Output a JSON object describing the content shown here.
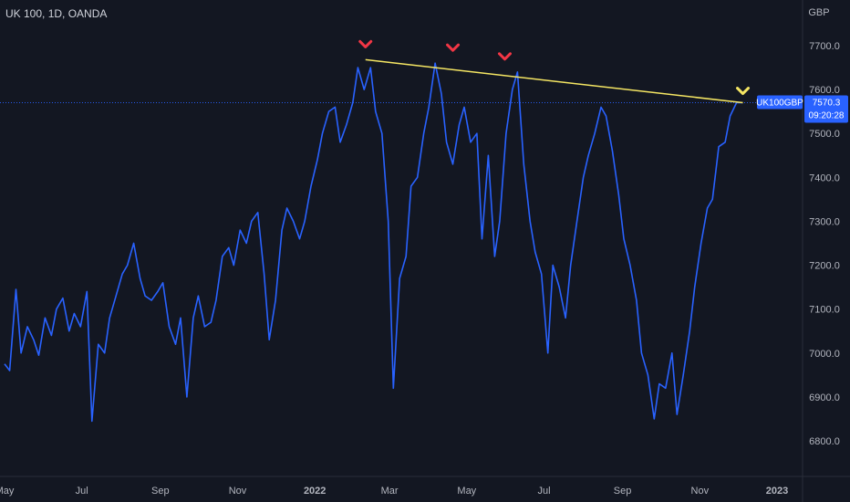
{
  "header": {
    "symbol_title": "UK 100, 1D, OANDA"
  },
  "price_axis": {
    "currency": "GBP"
  },
  "price_tag": {
    "symbol": "UK100GBP",
    "price": "7570.3",
    "countdown": "09:20:28"
  },
  "colors": {
    "background": "#131722",
    "series": "#2962ff",
    "trendline": "#f5e663",
    "down_marker": "#f23645",
    "up_marker": "#f5e663",
    "price_tag": "#2962ff",
    "axis_text": "#b2b5be"
  },
  "icons": {
    "peak_marker": "chevron-down-icon",
    "current_marker": "chevron-down-icon"
  },
  "chart_data": {
    "type": "line",
    "title": "UK 100, 1D, OANDA",
    "xlabel": "",
    "ylabel": "GBP",
    "ylim": [
      6720,
      7800
    ],
    "x_ticks": [
      "May",
      "Jul",
      "Sep",
      "Nov",
      "2022",
      "Mar",
      "May",
      "Jul",
      "Sep",
      "Nov",
      "2023"
    ],
    "y_ticks": [
      6800,
      6900,
      7000,
      7100,
      7200,
      7300,
      7400,
      7500,
      7600,
      7700
    ],
    "grid": false,
    "series": [
      {
        "name": "UK100GBP",
        "x": [
          "2021-05-01",
          "2021-05-05",
          "2021-05-10",
          "2021-05-14",
          "2021-05-19",
          "2021-05-24",
          "2021-05-28",
          "2021-06-02",
          "2021-06-07",
          "2021-06-11",
          "2021-06-16",
          "2021-06-21",
          "2021-06-25",
          "2021-06-30",
          "2021-07-05",
          "2021-07-09",
          "2021-07-14",
          "2021-07-19",
          "2021-07-23",
          "2021-07-28",
          "2021-08-02",
          "2021-08-06",
          "2021-08-11",
          "2021-08-16",
          "2021-08-20",
          "2021-08-25",
          "2021-08-30",
          "2021-09-03",
          "2021-09-08",
          "2021-09-13",
          "2021-09-17",
          "2021-09-22",
          "2021-09-27",
          "2021-10-01",
          "2021-10-06",
          "2021-10-11",
          "2021-10-15",
          "2021-10-20",
          "2021-10-25",
          "2021-10-29",
          "2021-11-03",
          "2021-11-08",
          "2021-11-12",
          "2021-11-17",
          "2021-11-22",
          "2021-11-26",
          "2021-12-01",
          "2021-12-06",
          "2021-12-10",
          "2021-12-15",
          "2021-12-20",
          "2021-12-24",
          "2021-12-29",
          "2022-01-03",
          "2022-01-07",
          "2022-01-12",
          "2022-01-17",
          "2022-01-21",
          "2022-01-26",
          "2022-01-31",
          "2022-02-04",
          "2022-02-09",
          "2022-02-14",
          "2022-02-18",
          "2022-02-23",
          "2022-02-28",
          "2022-03-04",
          "2022-03-09",
          "2022-03-14",
          "2022-03-18",
          "2022-03-23",
          "2022-03-28",
          "2022-04-01",
          "2022-04-06",
          "2022-04-11",
          "2022-04-15",
          "2022-04-20",
          "2022-04-25",
          "2022-04-29",
          "2022-05-04",
          "2022-05-09",
          "2022-05-13",
          "2022-05-18",
          "2022-05-23",
          "2022-05-27",
          "2022-06-01",
          "2022-06-06",
          "2022-06-10",
          "2022-06-15",
          "2022-06-20",
          "2022-06-24",
          "2022-06-29",
          "2022-07-04",
          "2022-07-08",
          "2022-07-13",
          "2022-07-18",
          "2022-07-22",
          "2022-07-27",
          "2022-08-01",
          "2022-08-05",
          "2022-08-10",
          "2022-08-15",
          "2022-08-19",
          "2022-08-24",
          "2022-08-29",
          "2022-09-02",
          "2022-09-07",
          "2022-09-12",
          "2022-09-16",
          "2022-09-21",
          "2022-09-26",
          "2022-09-30",
          "2022-10-05",
          "2022-10-10",
          "2022-10-14",
          "2022-10-19",
          "2022-10-24",
          "2022-10-28",
          "2022-11-02",
          "2022-11-07",
          "2022-11-11",
          "2022-11-16",
          "2022-11-21",
          "2022-11-25",
          "2022-11-30",
          "2022-12-05"
        ],
        "values": [
          6975,
          6960,
          7145,
          7000,
          7060,
          7030,
          6995,
          7080,
          7040,
          7100,
          7125,
          7050,
          7090,
          7060,
          7140,
          6845,
          7020,
          7000,
          7080,
          7130,
          7180,
          7200,
          7250,
          7170,
          7130,
          7120,
          7140,
          7160,
          7060,
          7020,
          7080,
          6900,
          7080,
          7130,
          7060,
          7070,
          7120,
          7220,
          7240,
          7200,
          7280,
          7250,
          7300,
          7320,
          7180,
          7030,
          7120,
          7280,
          7330,
          7300,
          7260,
          7300,
          7380,
          7440,
          7500,
          7550,
          7560,
          7480,
          7520,
          7570,
          7650,
          7600,
          7650,
          7550,
          7500,
          7300,
          6920,
          7170,
          7220,
          7380,
          7400,
          7500,
          7560,
          7660,
          7590,
          7480,
          7430,
          7520,
          7560,
          7480,
          7500,
          7260,
          7450,
          7220,
          7300,
          7500,
          7600,
          7640,
          7430,
          7300,
          7230,
          7180,
          7000,
          7200,
          7150,
          7080,
          7200,
          7300,
          7400,
          7450,
          7500,
          7560,
          7540,
          7460,
          7360,
          7260,
          7200,
          7120,
          7000,
          6950,
          6850,
          6930,
          6920,
          7000,
          6860,
          6950,
          7050,
          7150,
          7250,
          7330,
          7350,
          7470,
          7480,
          7540,
          7570,
          7570
        ]
      }
    ],
    "annotations": {
      "resistance_line": {
        "x": [
          "2022-02-10",
          "2022-12-05"
        ],
        "y": [
          7668,
          7570
        ]
      },
      "peak_markers": [
        {
          "x": "2022-02-10",
          "y": 7668
        },
        {
          "x": "2022-04-20",
          "y": 7660
        },
        {
          "x": "2022-05-31",
          "y": 7640
        }
      ],
      "current_marker": {
        "x": "2022-12-05",
        "y": 7570
      }
    }
  }
}
